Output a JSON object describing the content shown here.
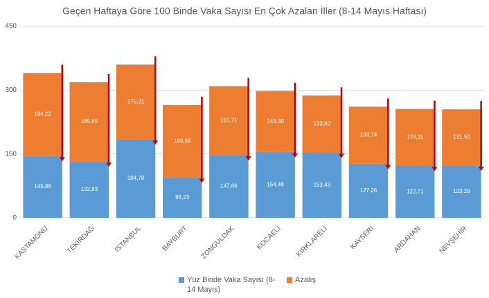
{
  "chart_data": {
    "type": "stacked_bar",
    "title": "Geçen Haftaya Göre 100 Binde Vaka Sayısı En Çok Azalan İller (8-14 Mayıs Haftası)",
    "categories": [
      "KASTAMONU",
      "TEKİRDAĞ",
      "İSTANBUL",
      "BAYBURT",
      "ZONGULDAK",
      "KOCAELİ",
      "KIRKLARELİ",
      "KAYSERİ",
      "ARDAHAN",
      "NEVŞEHİR"
    ],
    "series": [
      {
        "name": "Yüz Binde Vaka Sayısı (8-14 Mayıs)",
        "color": "#5b9bd5",
        "values": [
          145.86,
          132.83,
          184.78,
          95.23,
          147.66,
          154.46,
          153.43,
          127.26,
          122.71,
          123.29
        ],
        "value_labels": [
          "145,86",
          "132,83",
          "184,78",
          "95,23",
          "147,66",
          "154,46",
          "153,43",
          "127,26",
          "122,71",
          "123,29"
        ]
      },
      {
        "name": "Azalış",
        "color": "#ed7d31",
        "values": [
          194.22,
          185.65,
          175.21,
          169.69,
          161.71,
          143.3,
          133.8,
          133.74,
          133.11,
          131.5
        ],
        "value_labels": [
          "194,22",
          "185,65",
          "175,21",
          "169,69",
          "161,71",
          "143,30",
          "133,80",
          "133,74",
          "133,11",
          "131,50"
        ]
      }
    ],
    "ylim": [
      0,
      450
    ],
    "yticks": [
      0,
      150,
      300,
      450
    ],
    "grid": true
  }
}
